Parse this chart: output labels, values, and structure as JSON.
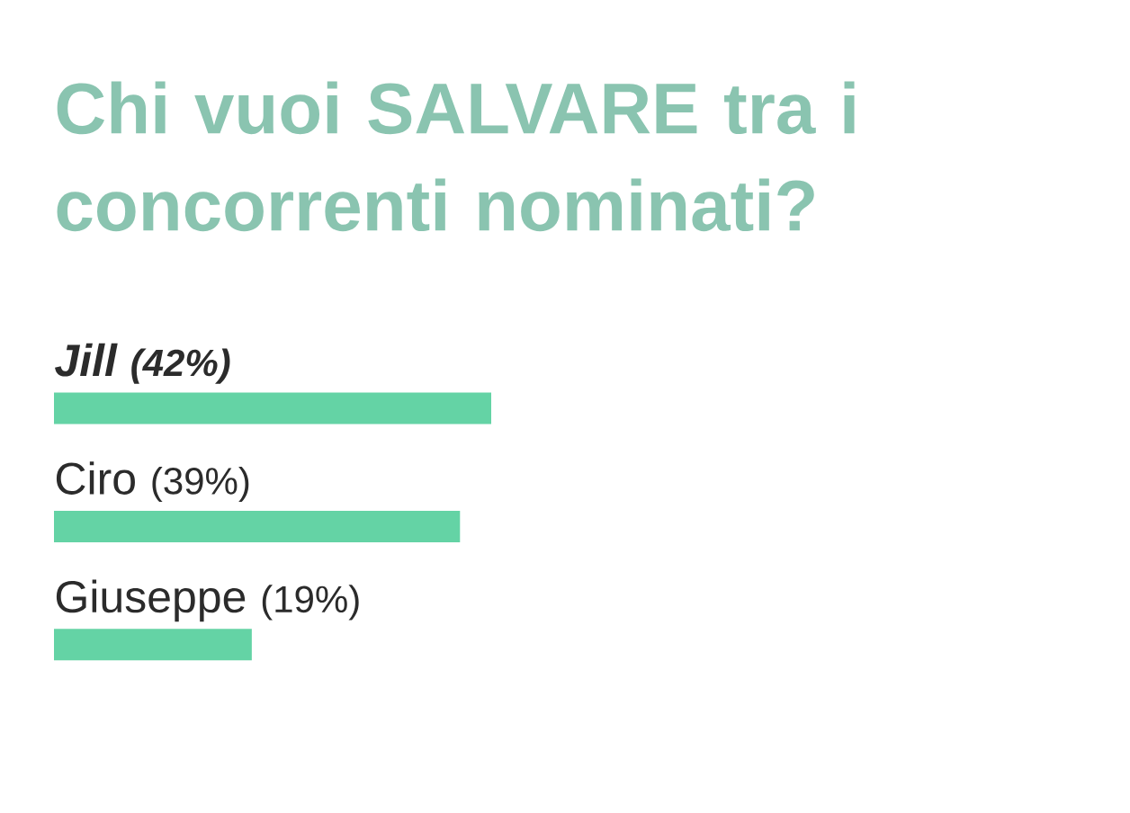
{
  "chart_data": {
    "type": "bar",
    "orientation": "horizontal",
    "title": "Chi vuoi SALVARE tra i concorrenti nominati?",
    "categories": [
      "Jill",
      "Ciro",
      "Giuseppe"
    ],
    "values": [
      42,
      39,
      19
    ],
    "value_labels": [
      "(42%)",
      "(39%)",
      "(19%)"
    ],
    "color": "#64d3a5",
    "tick_labels": false
  }
}
